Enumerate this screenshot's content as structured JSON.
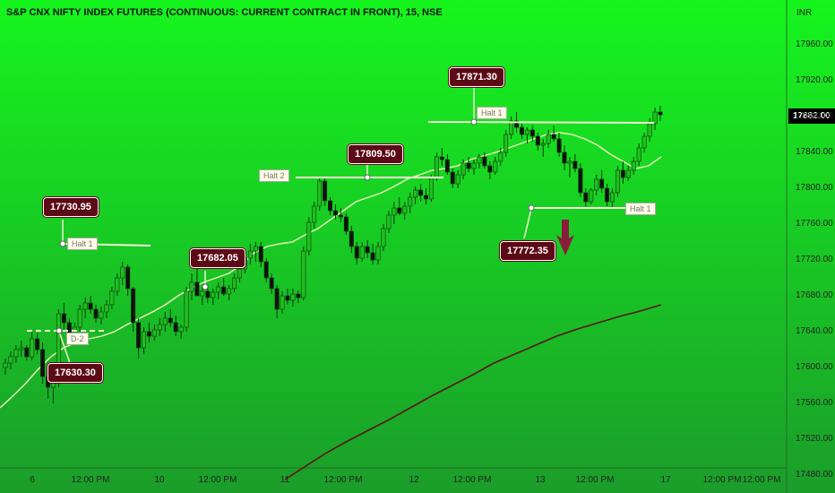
{
  "title": "S&P CNX NIFTY INDEX FUTURES (CONTINUOUS: CURRENT CONTRACT IN FRONT), 15, NSE",
  "currency": "INR",
  "last_price": "17882.00",
  "colors": {
    "bg_top": "#16f51e",
    "bg_bottom": "#1a9a2a",
    "candle_up": "#1fbe1f",
    "candle_down": "#111111",
    "ma_fast": "#f2f4bd",
    "ma_slow": "#5a1414",
    "annotation_bg": "#5c0a16",
    "arrow": "#8b1c3c"
  },
  "annotations": [
    {
      "label": "17730.95",
      "name": "annotation-17730"
    },
    {
      "label": "17630.30",
      "name": "annotation-17630"
    },
    {
      "label": "17682.05",
      "name": "annotation-17682"
    },
    {
      "label": "17809.50",
      "name": "annotation-17809"
    },
    {
      "label": "17871.30",
      "name": "annotation-17871"
    },
    {
      "label": "17772.35",
      "name": "annotation-17772"
    }
  ],
  "tags": [
    "Halt 1",
    "D-2",
    "Halt 2",
    "Halt 1",
    "Halt 1"
  ],
  "chart_data": {
    "type": "candlestick",
    "y_ticks": [
      "17960.00",
      "17920.00",
      "17880.00",
      "17840.00",
      "17800.00",
      "17760.00",
      "17720.00",
      "17680.00",
      "17640.00",
      "17600.00",
      "17560.00",
      "17520.00",
      "17480.00"
    ],
    "x_ticks": [
      "6",
      "12:00 PM",
      "10",
      "12:00 PM",
      "11",
      "12:00 PM",
      "12",
      "12:00 PM",
      "13",
      "12:00 PM",
      "17",
      "12:00 PM",
      "12:00 PM"
    ],
    "ylim": [
      17470,
      17990
    ],
    "ohlc": [
      [
        17600,
        17610,
        17592,
        17605
      ],
      [
        17605,
        17618,
        17598,
        17612
      ],
      [
        17612,
        17625,
        17605,
        17620
      ],
      [
        17620,
        17630,
        17612,
        17622
      ],
      [
        17622,
        17625,
        17608,
        17612
      ],
      [
        17612,
        17640,
        17608,
        17632
      ],
      [
        17632,
        17638,
        17615,
        17620
      ],
      [
        17620,
        17628,
        17582,
        17590
      ],
      [
        17590,
        17595,
        17565,
        17578
      ],
      [
        17578,
        17588,
        17560,
        17583
      ],
      [
        17583,
        17665,
        17578,
        17660
      ],
      [
        17660,
        17672,
        17640,
        17650
      ],
      [
        17650,
        17655,
        17628,
        17635
      ],
      [
        17635,
        17650,
        17628,
        17645
      ],
      [
        17645,
        17670,
        17640,
        17665
      ],
      [
        17665,
        17678,
        17655,
        17672
      ],
      [
        17672,
        17680,
        17660,
        17665
      ],
      [
        17665,
        17670,
        17650,
        17655
      ],
      [
        17655,
        17668,
        17648,
        17662
      ],
      [
        17662,
        17675,
        17655,
        17670
      ],
      [
        17670,
        17690,
        17665,
        17685
      ],
      [
        17685,
        17705,
        17680,
        17700
      ],
      [
        17700,
        17718,
        17692,
        17712
      ],
      [
        17712,
        17715,
        17680,
        17688
      ],
      [
        17688,
        17690,
        17640,
        17650
      ],
      [
        17650,
        17655,
        17610,
        17622
      ],
      [
        17622,
        17645,
        17615,
        17640
      ],
      [
        17640,
        17650,
        17628,
        17635
      ],
      [
        17635,
        17648,
        17630,
        17642
      ],
      [
        17642,
        17655,
        17635,
        17648
      ],
      [
        17648,
        17662,
        17640,
        17655
      ],
      [
        17655,
        17665,
        17645,
        17650
      ],
      [
        17650,
        17658,
        17635,
        17640
      ],
      [
        17640,
        17648,
        17632,
        17645
      ],
      [
        17645,
        17690,
        17640,
        17685
      ],
      [
        17685,
        17705,
        17675,
        17695
      ],
      [
        17695,
        17712,
        17685,
        17680
      ],
      [
        17680,
        17690,
        17670,
        17685
      ],
      [
        17685,
        17692,
        17672,
        17678
      ],
      [
        17678,
        17688,
        17670,
        17684
      ],
      [
        17684,
        17695,
        17676,
        17690
      ],
      [
        17690,
        17700,
        17680,
        17682
      ],
      [
        17682,
        17692,
        17675,
        17688
      ],
      [
        17688,
        17705,
        17684,
        17700
      ],
      [
        17700,
        17715,
        17695,
        17710
      ],
      [
        17710,
        17728,
        17705,
        17722
      ],
      [
        17722,
        17738,
        17715,
        17730
      ],
      [
        17730,
        17740,
        17718,
        17735
      ],
      [
        17735,
        17740,
        17712,
        17718
      ],
      [
        17718,
        17722,
        17695,
        17700
      ],
      [
        17700,
        17705,
        17682,
        17688
      ],
      [
        17688,
        17692,
        17655,
        17665
      ],
      [
        17665,
        17685,
        17660,
        17680
      ],
      [
        17680,
        17688,
        17670,
        17675
      ],
      [
        17675,
        17688,
        17668,
        17682
      ],
      [
        17682,
        17686,
        17672,
        17678
      ],
      [
        17678,
        17735,
        17675,
        17730
      ],
      [
        17730,
        17768,
        17725,
        17762
      ],
      [
        17762,
        17785,
        17755,
        17780
      ],
      [
        17780,
        17812,
        17775,
        17808
      ],
      [
        17808,
        17812,
        17780,
        17786
      ],
      [
        17786,
        17790,
        17770,
        17775
      ],
      [
        17775,
        17782,
        17765,
        17770
      ],
      [
        17770,
        17778,
        17762,
        17768
      ],
      [
        17768,
        17772,
        17748,
        17752
      ],
      [
        17752,
        17758,
        17728,
        17735
      ],
      [
        17735,
        17740,
        17715,
        17722
      ],
      [
        17722,
        17740,
        17718,
        17735
      ],
      [
        17735,
        17742,
        17722,
        17728
      ],
      [
        17728,
        17738,
        17715,
        17720
      ],
      [
        17720,
        17740,
        17715,
        17735
      ],
      [
        17735,
        17760,
        17730,
        17755
      ],
      [
        17755,
        17775,
        17750,
        17770
      ],
      [
        17770,
        17785,
        17760,
        17778
      ],
      [
        17778,
        17790,
        17770,
        17772
      ],
      [
        17772,
        17785,
        17765,
        17780
      ],
      [
        17780,
        17795,
        17772,
        17790
      ],
      [
        17790,
        17802,
        17782,
        17798
      ],
      [
        17798,
        17805,
        17785,
        17792
      ],
      [
        17792,
        17800,
        17782,
        17788
      ],
      [
        17788,
        17815,
        17785,
        17812
      ],
      [
        17812,
        17840,
        17808,
        17835
      ],
      [
        17835,
        17845,
        17825,
        17832
      ],
      [
        17832,
        17838,
        17815,
        17818
      ],
      [
        17818,
        17822,
        17800,
        17805
      ],
      [
        17805,
        17820,
        17800,
        17815
      ],
      [
        17815,
        17832,
        17810,
        17828
      ],
      [
        17828,
        17835,
        17818,
        17822
      ],
      [
        17822,
        17832,
        17815,
        17828
      ],
      [
        17828,
        17838,
        17822,
        17835
      ],
      [
        17835,
        17840,
        17822,
        17825
      ],
      [
        17825,
        17830,
        17810,
        17818
      ],
      [
        17818,
        17835,
        17815,
        17830
      ],
      [
        17830,
        17845,
        17825,
        17840
      ],
      [
        17840,
        17865,
        17835,
        17860
      ],
      [
        17860,
        17880,
        17855,
        17875
      ],
      [
        17875,
        17885,
        17862,
        17868
      ],
      [
        17868,
        17872,
        17855,
        17860
      ],
      [
        17860,
        17868,
        17850,
        17865
      ],
      [
        17865,
        17870,
        17852,
        17858
      ],
      [
        17858,
        17862,
        17842,
        17848
      ],
      [
        17848,
        17855,
        17835,
        17850
      ],
      [
        17850,
        17865,
        17845,
        17860
      ],
      [
        17860,
        17870,
        17852,
        17855
      ],
      [
        17855,
        17862,
        17835,
        17840
      ],
      [
        17840,
        17848,
        17820,
        17828
      ],
      [
        17828,
        17835,
        17812,
        17830
      ],
      [
        17830,
        17838,
        17818,
        17822
      ],
      [
        17822,
        17828,
        17790,
        17795
      ],
      [
        17795,
        17800,
        17778,
        17785
      ],
      [
        17785,
        17800,
        17782,
        17798
      ],
      [
        17798,
        17815,
        17792,
        17810
      ],
      [
        17810,
        17820,
        17795,
        17800
      ],
      [
        17800,
        17805,
        17780,
        17785
      ],
      [
        17785,
        17800,
        17778,
        17795
      ],
      [
        17795,
        17825,
        17790,
        17820
      ],
      [
        17820,
        17830,
        17805,
        17812
      ],
      [
        17812,
        17825,
        17808,
        17820
      ],
      [
        17820,
        17835,
        17815,
        17830
      ],
      [
        17830,
        17850,
        17825,
        17845
      ],
      [
        17845,
        17862,
        17840,
        17858
      ],
      [
        17858,
        17878,
        17852,
        17872
      ],
      [
        17872,
        17890,
        17865,
        17885
      ],
      [
        17885,
        17892,
        17875,
        17882
      ]
    ],
    "ma_fast": [
      17555,
      17568,
      17582,
      17598,
      17612,
      17622,
      17628,
      17632,
      17635,
      17640,
      17648,
      17655,
      17662,
      17670,
      17680,
      17688,
      17695,
      17700,
      17705,
      17715,
      17728,
      17735,
      17738,
      17740,
      17748,
      17755,
      17765,
      17775,
      17785,
      17790,
      17795,
      17802,
      17810,
      17815,
      17820,
      17822,
      17825,
      17832,
      17836,
      17840,
      17845,
      17850,
      17855,
      17860,
      17862,
      17860,
      17855,
      17848,
      17838,
      17830,
      17822,
      17825,
      17835
    ],
    "ma_slow": [
      17475,
      17490,
      17505,
      17518,
      17530,
      17542,
      17555,
      17568,
      17580,
      17592,
      17605,
      17615,
      17625,
      17635,
      17643,
      17650,
      17657,
      17663,
      17670
    ]
  }
}
